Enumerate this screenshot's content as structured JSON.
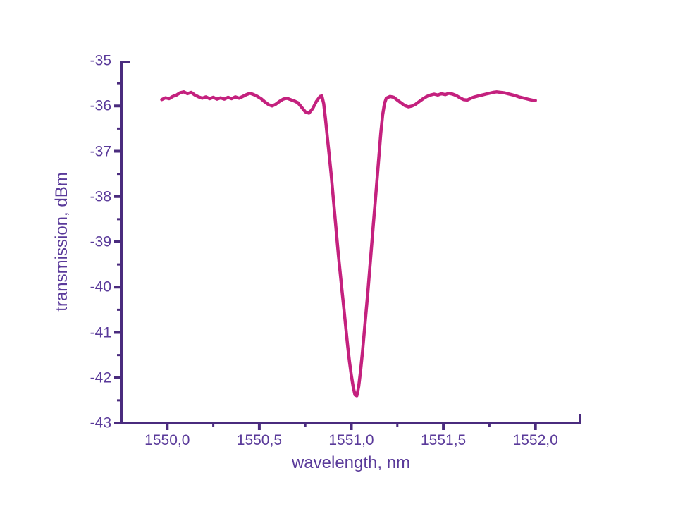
{
  "window": {
    "background": "#ffffff"
  },
  "chart_data": {
    "type": "line",
    "title": "",
    "xlabel": "wavelength, nm",
    "ylabel": "transmission, dBm",
    "xlim": [
      1549.75,
      1552.25
    ],
    "ylim": [
      -43,
      -35
    ],
    "grid": false,
    "legend": "none",
    "axis_color": "#4a2b7e",
    "label_color": "#5a3a9a",
    "line_color": "#c4217e",
    "x_major_ticks": [
      1550.0,
      1550.5,
      1551.0,
      1551.5,
      1552.0
    ],
    "x_major_tick_labels": [
      "1550,0",
      "1550,5",
      "1551,0",
      "1551,5",
      "1552,0"
    ],
    "x_minor_ticks": [
      1550.25,
      1550.75,
      1551.25,
      1551.75
    ],
    "y_major_ticks": [
      -35,
      -36,
      -37,
      -38,
      -39,
      -40,
      -41,
      -42,
      -43
    ],
    "y_major_tick_labels": [
      "-35",
      "-36",
      "-37",
      "-38",
      "-39",
      "-40",
      "-41",
      "-42",
      "-43"
    ],
    "y_minor_ticks": [
      -35.5,
      -36.5,
      -37.5,
      -38.5,
      -39.5,
      -40.5,
      -41.5,
      -42.5
    ],
    "notch": {
      "center_nm": 1551.02,
      "min_dBm": -42.4,
      "baseline_dBm": -35.8
    },
    "series": [
      {
        "name": "transmission",
        "color": "#c4217e",
        "points": [
          [
            1549.97,
            -35.86
          ],
          [
            1549.99,
            -35.82
          ],
          [
            1550.01,
            -35.84
          ],
          [
            1550.03,
            -35.79
          ],
          [
            1550.05,
            -35.76
          ],
          [
            1550.07,
            -35.71
          ],
          [
            1550.09,
            -35.69
          ],
          [
            1550.11,
            -35.73
          ],
          [
            1550.13,
            -35.7
          ],
          [
            1550.15,
            -35.76
          ],
          [
            1550.17,
            -35.8
          ],
          [
            1550.19,
            -35.83
          ],
          [
            1550.21,
            -35.8
          ],
          [
            1550.23,
            -35.84
          ],
          [
            1550.25,
            -35.81
          ],
          [
            1550.27,
            -35.85
          ],
          [
            1550.29,
            -35.82
          ],
          [
            1550.31,
            -35.85
          ],
          [
            1550.33,
            -35.81
          ],
          [
            1550.35,
            -35.84
          ],
          [
            1550.37,
            -35.8
          ],
          [
            1550.39,
            -35.83
          ],
          [
            1550.41,
            -35.79
          ],
          [
            1550.43,
            -35.75
          ],
          [
            1550.45,
            -35.72
          ],
          [
            1550.47,
            -35.75
          ],
          [
            1550.49,
            -35.79
          ],
          [
            1550.51,
            -35.84
          ],
          [
            1550.53,
            -35.91
          ],
          [
            1550.55,
            -35.97
          ],
          [
            1550.57,
            -36.0
          ],
          [
            1550.59,
            -35.96
          ],
          [
            1550.61,
            -35.9
          ],
          [
            1550.63,
            -35.85
          ],
          [
            1550.65,
            -35.83
          ],
          [
            1550.67,
            -35.86
          ],
          [
            1550.69,
            -35.89
          ],
          [
            1550.71,
            -35.93
          ],
          [
            1550.73,
            -36.03
          ],
          [
            1550.75,
            -36.13
          ],
          [
            1550.77,
            -36.16
          ],
          [
            1550.79,
            -36.06
          ],
          [
            1550.81,
            -35.9
          ],
          [
            1550.83,
            -35.79
          ],
          [
            1550.84,
            -35.78
          ],
          [
            1550.85,
            -35.95
          ],
          [
            1550.86,
            -36.3
          ],
          [
            1550.87,
            -36.7
          ],
          [
            1550.88,
            -37.1
          ],
          [
            1550.89,
            -37.5
          ],
          [
            1550.9,
            -37.95
          ],
          [
            1550.91,
            -38.4
          ],
          [
            1550.92,
            -38.85
          ],
          [
            1550.93,
            -39.3
          ],
          [
            1550.94,
            -39.7
          ],
          [
            1550.95,
            -40.1
          ],
          [
            1550.96,
            -40.5
          ],
          [
            1550.97,
            -40.9
          ],
          [
            1550.98,
            -41.3
          ],
          [
            1550.99,
            -41.65
          ],
          [
            1551.0,
            -41.95
          ],
          [
            1551.01,
            -42.2
          ],
          [
            1551.02,
            -42.38
          ],
          [
            1551.03,
            -42.4
          ],
          [
            1551.04,
            -42.2
          ],
          [
            1551.05,
            -41.85
          ],
          [
            1551.06,
            -41.45
          ],
          [
            1551.07,
            -41.0
          ],
          [
            1551.08,
            -40.55
          ],
          [
            1551.09,
            -40.1
          ],
          [
            1551.1,
            -39.6
          ],
          [
            1551.11,
            -39.1
          ],
          [
            1551.12,
            -38.6
          ],
          [
            1551.13,
            -38.1
          ],
          [
            1551.14,
            -37.6
          ],
          [
            1551.15,
            -37.1
          ],
          [
            1551.16,
            -36.6
          ],
          [
            1551.17,
            -36.2
          ],
          [
            1551.18,
            -35.95
          ],
          [
            1551.19,
            -35.83
          ],
          [
            1551.21,
            -35.79
          ],
          [
            1551.23,
            -35.81
          ],
          [
            1551.25,
            -35.87
          ],
          [
            1551.27,
            -35.93
          ],
          [
            1551.29,
            -35.99
          ],
          [
            1551.31,
            -36.02
          ],
          [
            1551.33,
            -36.0
          ],
          [
            1551.35,
            -35.96
          ],
          [
            1551.37,
            -35.9
          ],
          [
            1551.39,
            -35.84
          ],
          [
            1551.41,
            -35.79
          ],
          [
            1551.43,
            -35.76
          ],
          [
            1551.45,
            -35.74
          ],
          [
            1551.47,
            -35.76
          ],
          [
            1551.49,
            -35.73
          ],
          [
            1551.51,
            -35.75
          ],
          [
            1551.53,
            -35.72
          ],
          [
            1551.55,
            -35.74
          ],
          [
            1551.57,
            -35.77
          ],
          [
            1551.59,
            -35.82
          ],
          [
            1551.61,
            -35.86
          ],
          [
            1551.63,
            -35.87
          ],
          [
            1551.65,
            -35.83
          ],
          [
            1551.67,
            -35.8
          ],
          [
            1551.69,
            -35.78
          ],
          [
            1551.71,
            -35.76
          ],
          [
            1551.73,
            -35.74
          ],
          [
            1551.75,
            -35.72
          ],
          [
            1551.77,
            -35.7
          ],
          [
            1551.79,
            -35.69
          ],
          [
            1551.81,
            -35.7
          ],
          [
            1551.83,
            -35.71
          ],
          [
            1551.85,
            -35.73
          ],
          [
            1551.87,
            -35.75
          ],
          [
            1551.89,
            -35.77
          ],
          [
            1551.91,
            -35.8
          ],
          [
            1551.93,
            -35.82
          ],
          [
            1551.95,
            -35.84
          ],
          [
            1551.97,
            -35.86
          ],
          [
            1551.99,
            -35.88
          ],
          [
            1552.0,
            -35.88
          ]
        ]
      }
    ]
  }
}
